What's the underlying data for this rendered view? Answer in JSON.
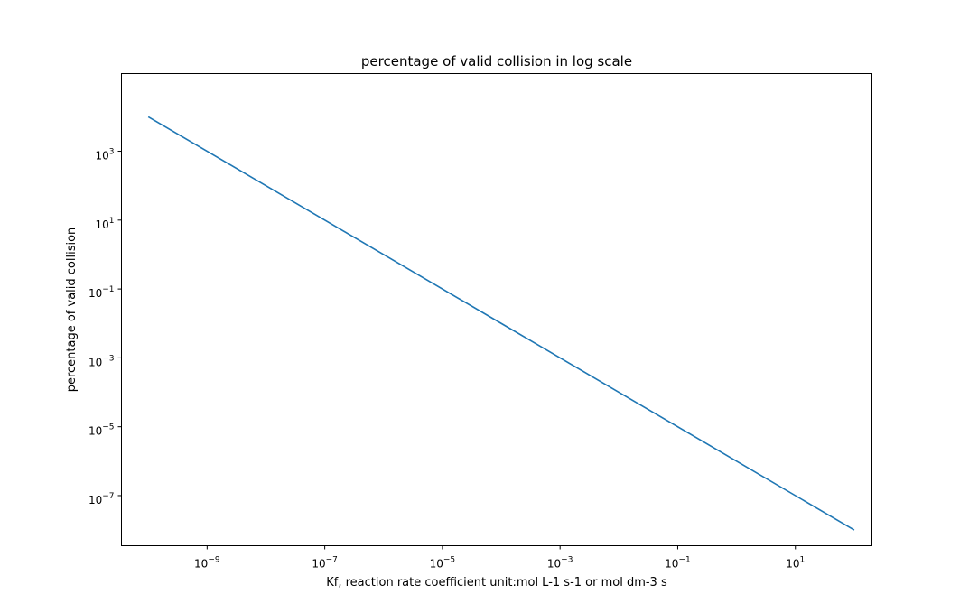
{
  "chart_data": {
    "type": "line",
    "title": "percentage of valid collision in log scale",
    "xlabel": "Kf, reaction rate coefficient unit:mol L-1 s-1 or mol dm-3 s",
    "ylabel": "percentage of valid collision",
    "xscale": "log",
    "yscale": "log",
    "xlim": [
      3.5e-11,
      200
    ],
    "ylim": [
      3.5e-09,
      180000
    ],
    "grid": false,
    "legend": "none",
    "line_color": "#1f77b4",
    "x_ticks": [
      {
        "base": "10",
        "exp": "−9",
        "value": 1e-09
      },
      {
        "base": "10",
        "exp": "−7",
        "value": 1e-07
      },
      {
        "base": "10",
        "exp": "−5",
        "value": 1e-05
      },
      {
        "base": "10",
        "exp": "−3",
        "value": 0.001
      },
      {
        "base": "10",
        "exp": "−1",
        "value": 0.1
      },
      {
        "base": "10",
        "exp": "1",
        "value": 10
      }
    ],
    "y_ticks": [
      {
        "base": "10",
        "exp": "3",
        "value": 1000
      },
      {
        "base": "10",
        "exp": "1",
        "value": 10
      },
      {
        "base": "10",
        "exp": "−1",
        "value": 0.1
      },
      {
        "base": "10",
        "exp": "−3",
        "value": 0.001
      },
      {
        "base": "10",
        "exp": "−5",
        "value": 1e-05
      },
      {
        "base": "10",
        "exp": "−7",
        "value": 1e-07
      }
    ],
    "series": [
      {
        "x": [
          1e-10,
          1e-08,
          1e-06,
          0.0001,
          0.01,
          1,
          100
        ],
        "y": [
          10000,
          100,
          1,
          0.01,
          0.0001,
          1e-06,
          1e-08
        ]
      }
    ]
  }
}
